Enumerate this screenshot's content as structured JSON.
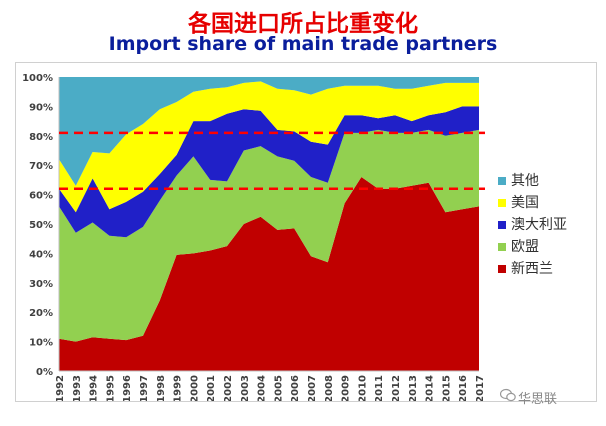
{
  "title_cn": "各国进口所占比重变化",
  "title_en": "Import share of main trade partners",
  "watermark": "华思联",
  "chart_data": {
    "type": "area",
    "stacked": true,
    "x": [
      "1992",
      "1993",
      "1994",
      "1995",
      "1996",
      "1997",
      "1998",
      "1999",
      "2000",
      "2001",
      "2002",
      "2003",
      "2004",
      "2005",
      "2006",
      "2007",
      "2008",
      "2009",
      "2010",
      "2011",
      "2012",
      "2013",
      "2014",
      "2015",
      "2016",
      "2017"
    ],
    "ylim": [
      0,
      100
    ],
    "yticks": [
      "0%",
      "10%",
      "20%",
      "30%",
      "40%",
      "50%",
      "60%",
      "70%",
      "80%",
      "90%",
      "100%"
    ],
    "series": [
      {
        "name": "新西兰",
        "color": "#c00000",
        "values": [
          11,
          10,
          11.5,
          11,
          10.5,
          12,
          24,
          39.5,
          40,
          41,
          42.5,
          50,
          52.5,
          48,
          48.5,
          39,
          37,
          57,
          66,
          62,
          62,
          63,
          64,
          54,
          55,
          56
        ]
      },
      {
        "name": "欧盟",
        "color": "#92d050",
        "values": [
          45,
          37,
          39,
          35,
          35,
          37,
          34,
          27,
          33,
          24,
          22,
          25,
          24,
          25,
          23,
          27,
          27,
          24,
          15,
          20,
          19,
          18,
          18,
          26,
          26,
          26
        ]
      },
      {
        "name": "澳大利亚",
        "color": "#2020c8",
        "values": [
          6,
          7,
          15,
          9,
          12,
          12,
          9,
          7,
          12,
          20,
          23,
          14,
          12,
          9,
          10,
          12,
          13,
          6,
          6,
          4,
          6,
          4,
          5,
          8,
          9,
          8
        ]
      },
      {
        "name": "美国",
        "color": "#ffff00",
        "values": [
          10,
          9,
          9,
          19,
          23,
          23,
          22,
          18,
          10,
          11,
          9,
          9,
          10,
          14,
          14,
          16,
          19,
          10,
          10,
          11,
          9,
          11,
          10,
          10,
          8,
          8
        ]
      },
      {
        "name": "其他",
        "color": "#4bacc6",
        "values": [
          28,
          37,
          25.5,
          26,
          19.5,
          16,
          11,
          8.5,
          5,
          4,
          3.5,
          2,
          1.5,
          4,
          4.5,
          6,
          4,
          3,
          3,
          3,
          4,
          4,
          3,
          2,
          2,
          2
        ]
      }
    ],
    "reference_lines": [
      62,
      81
    ],
    "reference_line_color": "#ff0000",
    "legend_position": "right",
    "grid": false
  }
}
